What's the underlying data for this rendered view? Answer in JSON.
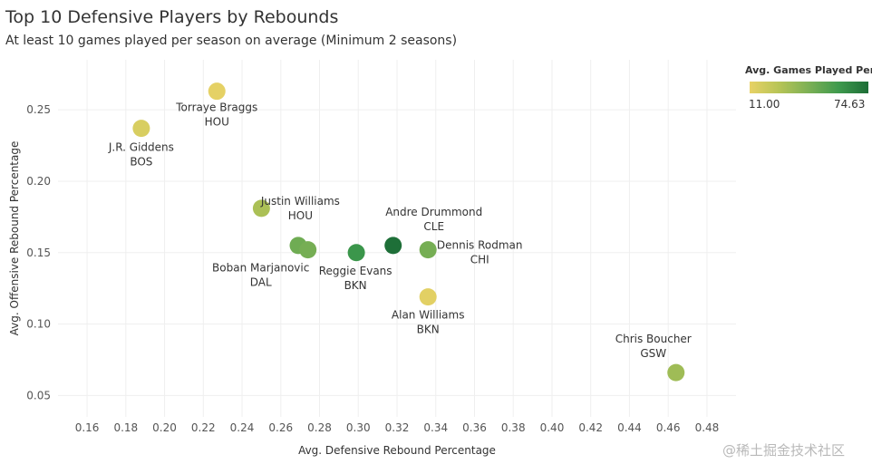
{
  "title": "Top 10 Defensive Players by Rebounds",
  "subtitle": "At least 10 games played per season on average (Minimum 2 seasons)",
  "legend": {
    "title": "Avg. Games Played Per ..",
    "min_label": "11.00",
    "max_label": "74.63",
    "colors": [
      "#e8d266",
      "#b6c456",
      "#7bb055",
      "#3e9a4d",
      "#1d6d37"
    ]
  },
  "watermark": "@稀土掘金技术社区",
  "chart_data": {
    "type": "scatter",
    "xlabel": "Avg. Defensive Rebound Percentage",
    "ylabel": "Avg. Offensive Rebound Percentage",
    "xlim": [
      0.145,
      0.495
    ],
    "ylim": [
      0.035,
      0.285
    ],
    "xticks": [
      "0.16",
      "0.18",
      "0.20",
      "0.22",
      "0.24",
      "0.26",
      "0.28",
      "0.30",
      "0.32",
      "0.34",
      "0.36",
      "0.38",
      "0.40",
      "0.42",
      "0.44",
      "0.46",
      "0.48"
    ],
    "yticks": [
      "0.05",
      "0.10",
      "0.15",
      "0.20",
      "0.25"
    ],
    "grid": true,
    "legend_position": "top-right",
    "points": [
      {
        "x": 0.227,
        "y": 0.263,
        "games": 12,
        "name": "Torraye Braggs",
        "team": "HOU"
      },
      {
        "x": 0.188,
        "y": 0.237,
        "games": 16,
        "name": "J.R. Giddens",
        "team": "BOS"
      },
      {
        "x": 0.25,
        "y": 0.181,
        "games": 30,
        "name": "Justin Williams",
        "team": "HOU"
      },
      {
        "x": 0.269,
        "y": 0.155,
        "games": 46,
        "name": "",
        "team": ""
      },
      {
        "x": 0.274,
        "y": 0.152,
        "games": 44,
        "name": "Boban Marjanovic",
        "team": "DAL"
      },
      {
        "x": 0.299,
        "y": 0.15,
        "games": 60,
        "name": "Reggie Evans",
        "team": "BKN"
      },
      {
        "x": 0.318,
        "y": 0.155,
        "games": 74,
        "name": "Andre Drummond",
        "team": "CLE"
      },
      {
        "x": 0.336,
        "y": 0.152,
        "games": 44,
        "name": "Dennis Rodman",
        "team": "CHI"
      },
      {
        "x": 0.336,
        "y": 0.119,
        "games": 13,
        "name": "Alan Williams",
        "team": "BKN"
      },
      {
        "x": 0.464,
        "y": 0.066,
        "games": 33,
        "name": "Chris Boucher",
        "team": "GSW"
      }
    ]
  }
}
